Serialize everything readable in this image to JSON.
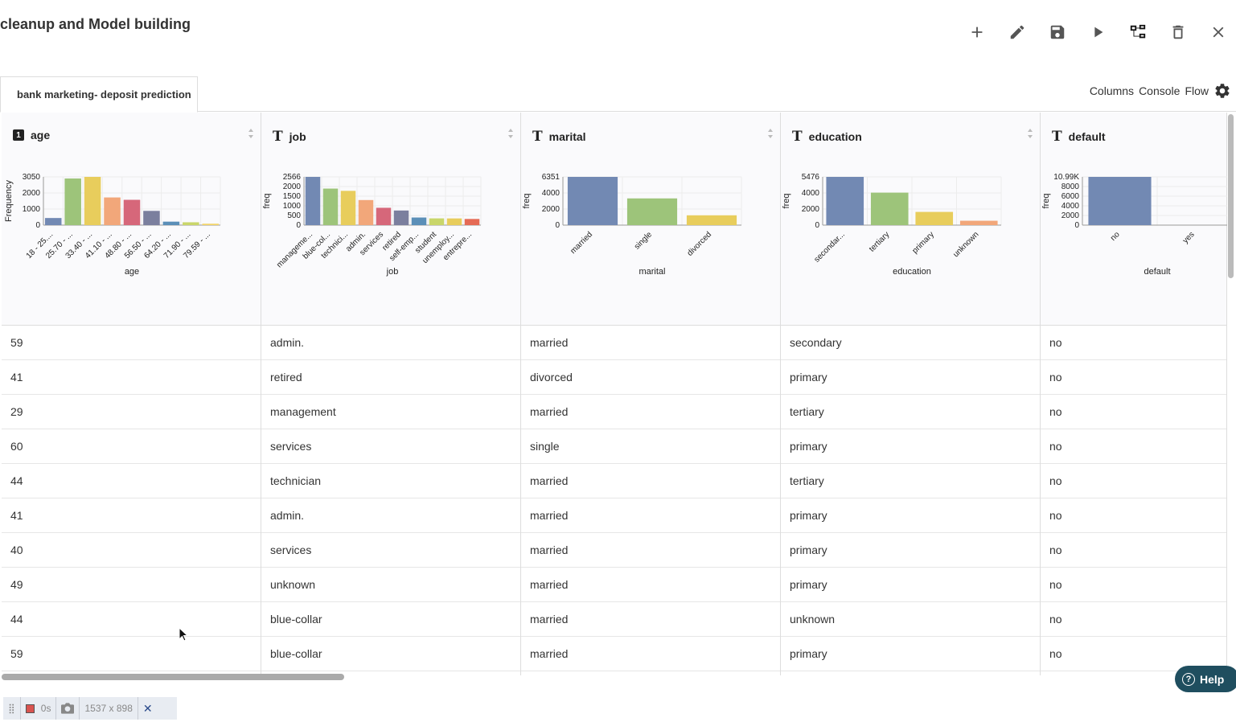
{
  "title": "cleanup and Model building",
  "toolbar": [
    "plus-icon",
    "pencil-icon",
    "save-icon",
    "play-icon",
    "flow-tree-icon",
    "trash-icon",
    "close-icon"
  ],
  "tab": {
    "label": "bank marketing- deposit prediction"
  },
  "nav": {
    "columns": "Columns",
    "console": "Console",
    "flow": "Flow"
  },
  "columns": [
    {
      "name": "age",
      "type": "number"
    },
    {
      "name": "job",
      "type": "text"
    },
    {
      "name": "marital",
      "type": "text"
    },
    {
      "name": "education",
      "type": "text"
    },
    {
      "name": "default",
      "type": "text"
    }
  ],
  "rows": [
    [
      "59",
      "admin.",
      "married",
      "secondary",
      "no"
    ],
    [
      "41",
      "retired",
      "divorced",
      "primary",
      "no"
    ],
    [
      "29",
      "management",
      "married",
      "tertiary",
      "no"
    ],
    [
      "60",
      "services",
      "single",
      "primary",
      "no"
    ],
    [
      "44",
      "technician",
      "married",
      "tertiary",
      "no"
    ],
    [
      "41",
      "admin.",
      "married",
      "primary",
      "no"
    ],
    [
      "40",
      "services",
      "married",
      "primary",
      "no"
    ],
    [
      "49",
      "unknown",
      "married",
      "primary",
      "no"
    ],
    [
      "44",
      "blue-collar",
      "married",
      "unknown",
      "no"
    ],
    [
      "59",
      "blue-collar",
      "married",
      "primary",
      "no"
    ]
  ],
  "chart_data": [
    {
      "type": "bar",
      "xlabel": "age",
      "ylabel": "Frequency",
      "y_tick_labels": [
        "0",
        "1000",
        "2000",
        "3050"
      ],
      "ylim": [
        0,
        3050
      ],
      "categories": [
        "18 - 25....",
        "25.70 - ...",
        "33.40 - ...",
        "41.10 - ...",
        "48.80 - ...",
        "56.50 - ...",
        "64.20 - ...",
        "71.90 - ...",
        "79.59 - ..."
      ],
      "values": [
        450,
        2950,
        3050,
        1750,
        1600,
        900,
        220,
        180,
        90
      ],
      "colors": [
        "#7289b3",
        "#9dc47a",
        "#e8cd5c",
        "#f2a77a",
        "#d6677a",
        "#7b7f9e",
        "#5b8fb8",
        "#c9d66a",
        "#f3d46a"
      ]
    },
    {
      "type": "bar",
      "xlabel": "job",
      "ylabel": "freq",
      "y_tick_labels": [
        "0",
        "500",
        "1000",
        "1500",
        "2000",
        "2566"
      ],
      "ylim": [
        0,
        2566
      ],
      "categories": [
        "manageme...",
        "blue-col...",
        "technici...",
        "admin.",
        "services",
        "retired",
        "self-emp...",
        "student",
        "unemploy...",
        "entrepre..."
      ],
      "values": [
        2566,
        1944,
        1823,
        1334,
        923,
        778,
        405,
        360,
        357,
        328
      ],
      "colors": [
        "#7289b3",
        "#9dc47a",
        "#e8cd5c",
        "#f2a77a",
        "#d6677a",
        "#7b7f9e",
        "#5b8fb8",
        "#c9d66a",
        "#e8cd5c",
        "#e56a55"
      ]
    },
    {
      "type": "bar",
      "xlabel": "marital",
      "ylabel": "freq",
      "y_tick_labels": [
        "0",
        "2000",
        "4000",
        "6351"
      ],
      "ylim": [
        0,
        6351
      ],
      "categories": [
        "married",
        "single",
        "divorced"
      ],
      "values": [
        6351,
        3518,
        1293
      ],
      "colors": [
        "#7289b3",
        "#9dc47a",
        "#e8cd5c"
      ]
    },
    {
      "type": "bar",
      "xlabel": "education",
      "ylabel": "freq",
      "y_tick_labels": [
        "0",
        "2000",
        "4000",
        "5476"
      ],
      "ylim": [
        0,
        5476
      ],
      "categories": [
        "secondar...",
        "tertiary",
        "primary",
        "unknown"
      ],
      "values": [
        5476,
        3689,
        1500,
        497
      ],
      "colors": [
        "#7289b3",
        "#9dc47a",
        "#e8cd5c",
        "#f2a77a"
      ]
    },
    {
      "type": "bar",
      "xlabel": "default",
      "ylabel": "freq",
      "y_tick_labels": [
        "0",
        "2000",
        "4000",
        "6000",
        "8000",
        "10.99K"
      ],
      "ylim": [
        0,
        10990
      ],
      "categories": [
        "no",
        "yes"
      ],
      "values": [
        10990,
        0
      ],
      "colors": [
        "#7289b3",
        "#9dc47a"
      ]
    }
  ],
  "help": {
    "label": "Help"
  },
  "recorder": {
    "time": "0s",
    "size": "1537 x 898"
  }
}
